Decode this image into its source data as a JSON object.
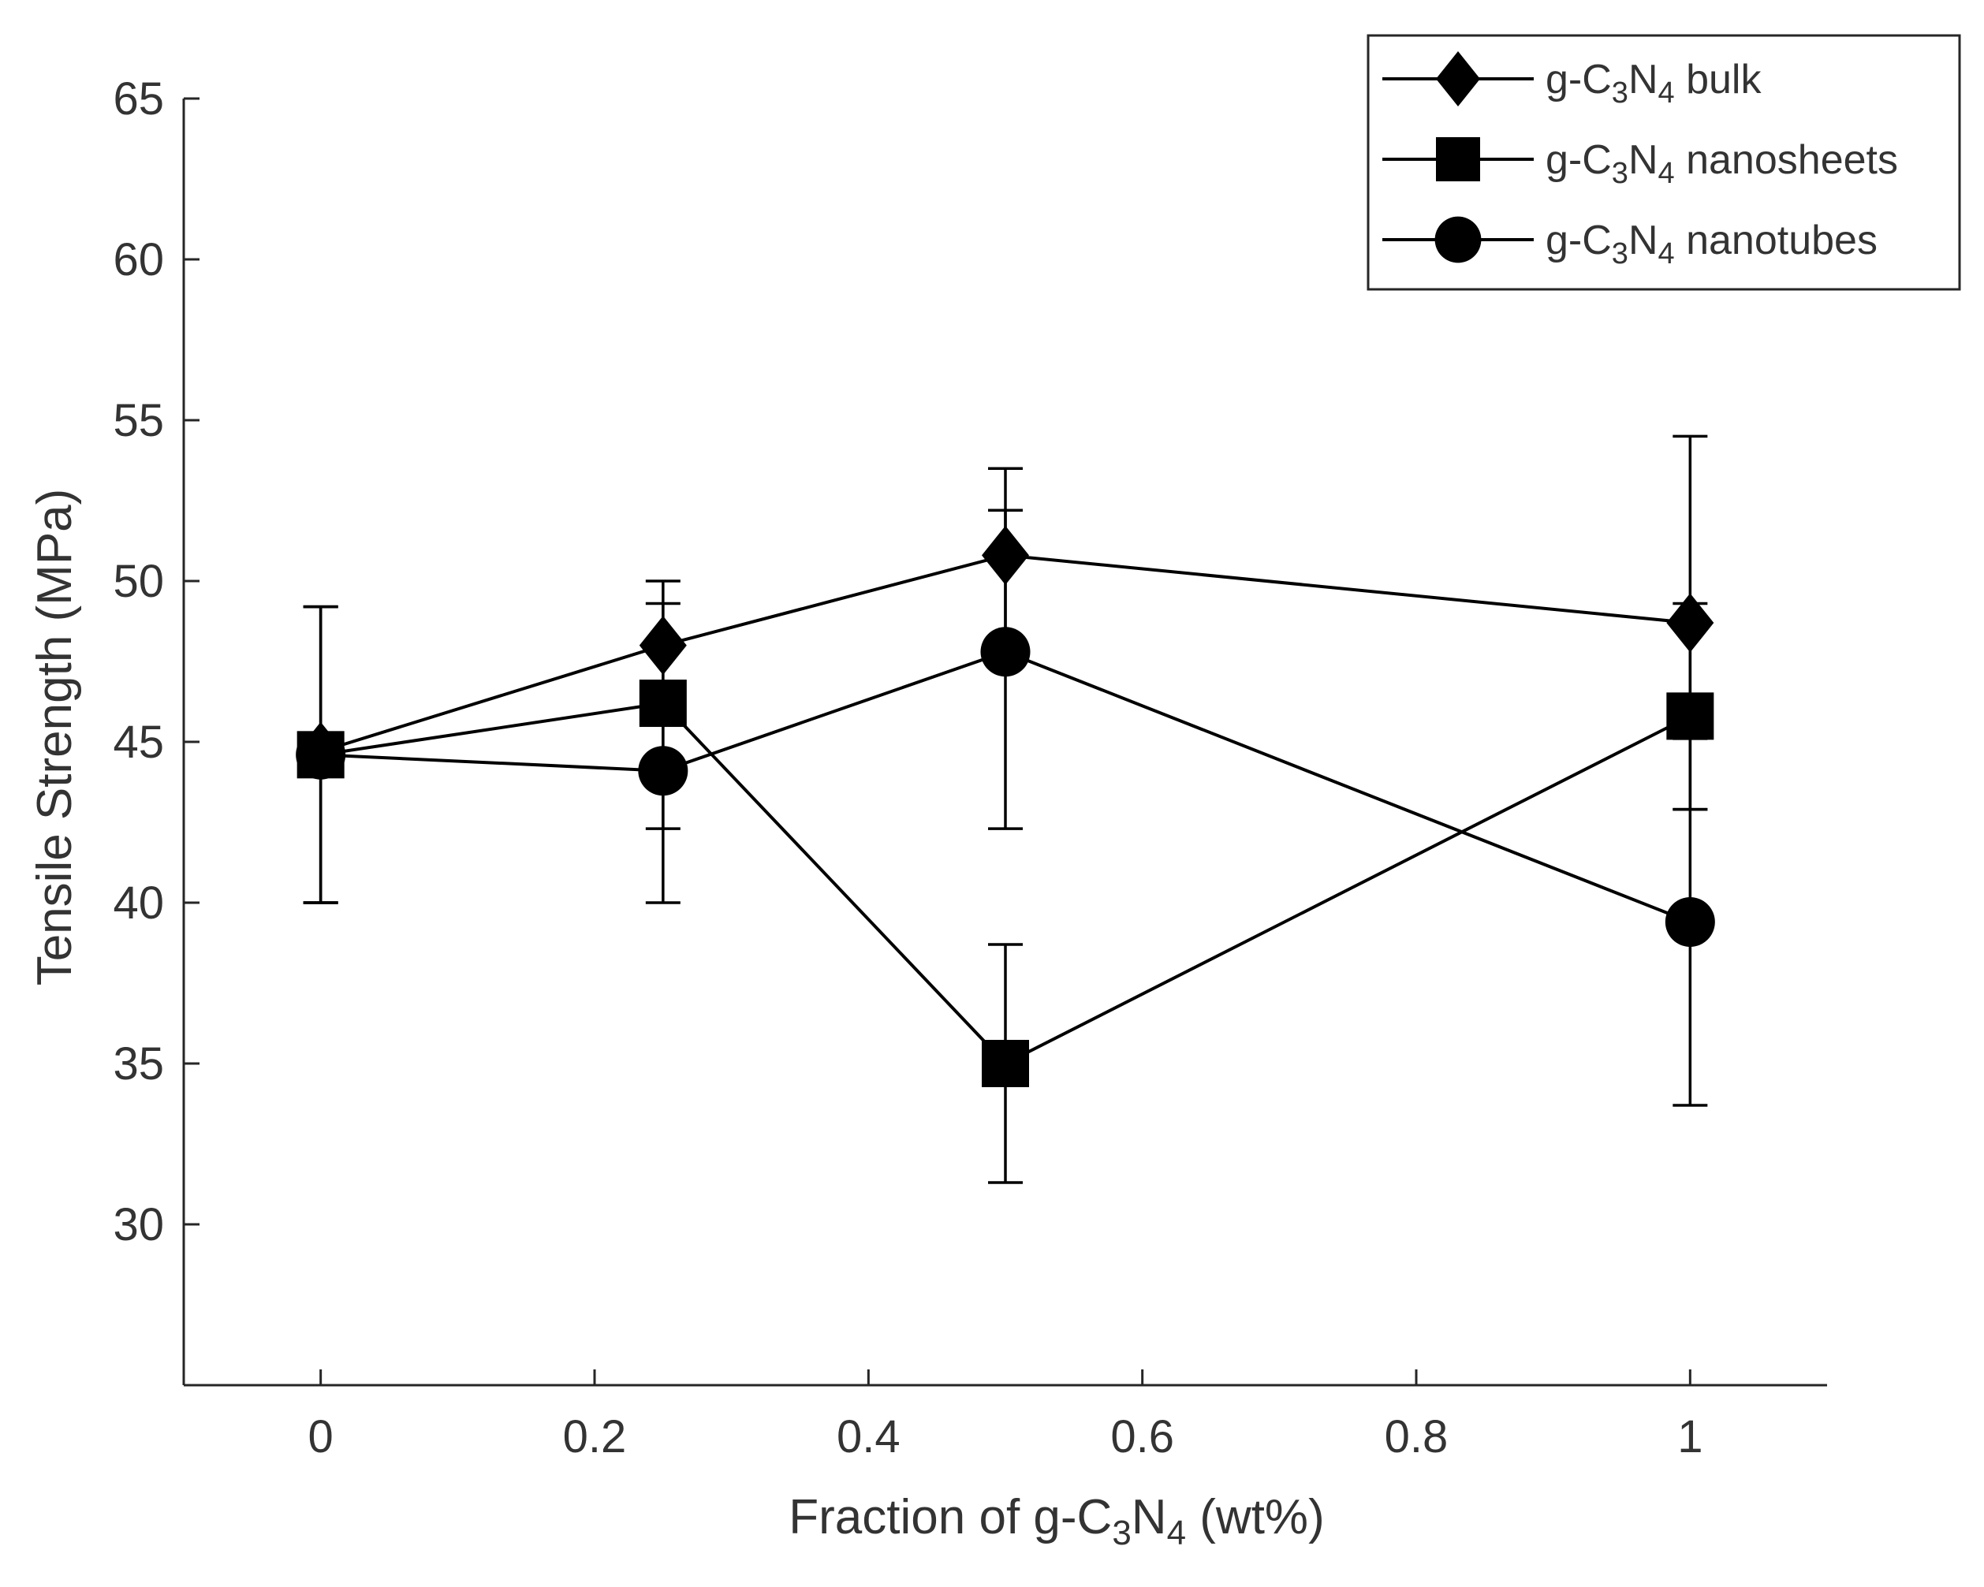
{
  "chart_data": {
    "type": "line",
    "xlabel": {
      "before": "Fraction of g-C",
      "sub1": "3",
      "mid": "N",
      "sub2": "4",
      "after": " (wt%)"
    },
    "ylabel": "Tensile Strength (MPa)",
    "xlim": [
      -0.1,
      1.1
    ],
    "ylim": [
      25,
      65
    ],
    "xticks": [
      0,
      0.2,
      0.4,
      0.6,
      0.8,
      1
    ],
    "xtick_labels": [
      "0",
      "0.2",
      "0.4",
      "0.6",
      "0.8",
      "1"
    ],
    "yticks": [
      30,
      35,
      40,
      45,
      50,
      55,
      60,
      65
    ],
    "ytick_labels": [
      "30",
      "35",
      "40",
      "45",
      "50",
      "55",
      "60",
      "65"
    ],
    "grid": false,
    "legend_position": "top-right",
    "x": [
      0,
      0.25,
      0.5,
      1
    ],
    "series": [
      {
        "name": "g-C3N4 bulk",
        "label_parts": {
          "before": "g-C",
          "sub1": "3",
          "mid": "N",
          "sub2": "4",
          "after": " bulk"
        },
        "marker": "diamond",
        "values": [
          44.7,
          48.0,
          50.8,
          48.7
        ],
        "err_low": [
          40.0,
          46.0,
          48.0,
          42.9
        ],
        "err_high": [
          49.2,
          50.0,
          53.5,
          54.5
        ]
      },
      {
        "name": "g-C3N4 nanosheets",
        "label_parts": {
          "before": "g-C",
          "sub1": "3",
          "mid": "N",
          "sub2": "4",
          "after": " nanosheets"
        },
        "marker": "square",
        "values": [
          44.6,
          46.2,
          35.0,
          45.8
        ],
        "err_low": [
          40.0,
          40.0,
          31.3,
          42.9
        ],
        "err_high": [
          49.2,
          49.3,
          38.7,
          49.3
        ]
      },
      {
        "name": "g-C3N4 nanotubes",
        "label_parts": {
          "before": "g-C",
          "sub1": "3",
          "mid": "N",
          "sub2": "4",
          "after": " nanotubes"
        },
        "marker": "circle",
        "values": [
          44.6,
          44.1,
          47.8,
          39.4
        ],
        "err_low": [
          40.0,
          42.3,
          42.3,
          33.7
        ],
        "err_high": [
          49.2,
          46.0,
          52.2,
          45.1
        ]
      }
    ]
  }
}
